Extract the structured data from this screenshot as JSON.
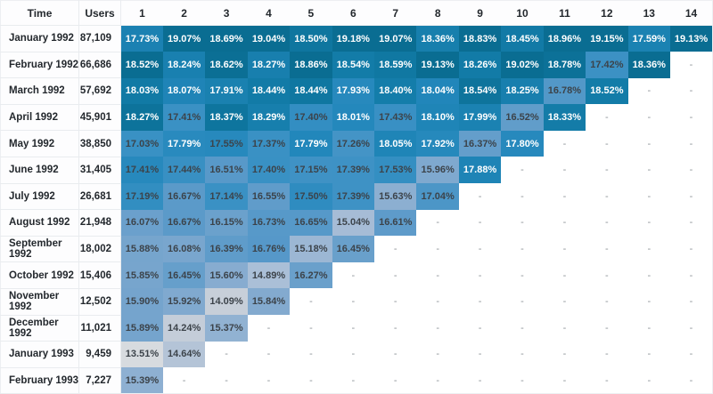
{
  "header": {
    "time": "Time",
    "users": "Users"
  },
  "chart_data": {
    "type": "heatmap",
    "columns": [
      "1",
      "2",
      "3",
      "4",
      "5",
      "6",
      "7",
      "8",
      "9",
      "10",
      "11",
      "12",
      "13",
      "14"
    ],
    "cohorts": [
      "January 1992",
      "February 1992",
      "March 1992",
      "April 1992",
      "May 1992",
      "June 1992",
      "July 1992",
      "August 1992",
      "September 1992",
      "October 1992",
      "November 1992",
      "December 1992",
      "January 1993",
      "February 1993"
    ],
    "users": [
      "87,109",
      "66,686",
      "57,692",
      "45,901",
      "38,850",
      "31,405",
      "26,681",
      "21,948",
      "18,002",
      "15,406",
      "12,502",
      "11,021",
      "9,459",
      "7,227"
    ],
    "values_percent": [
      [
        17.73,
        19.07,
        18.69,
        19.04,
        18.5,
        19.18,
        19.07,
        18.36,
        18.83,
        18.45,
        18.96,
        19.15,
        17.59,
        19.13
      ],
      [
        18.52,
        18.24,
        18.62,
        18.27,
        18.86,
        18.54,
        18.59,
        19.13,
        18.26,
        19.02,
        18.78,
        17.42,
        18.36,
        null
      ],
      [
        18.03,
        18.07,
        17.91,
        18.44,
        18.44,
        17.93,
        18.4,
        18.04,
        18.54,
        18.25,
        16.78,
        18.52,
        null,
        null
      ],
      [
        18.27,
        17.41,
        18.37,
        18.29,
        17.4,
        18.01,
        17.43,
        18.1,
        17.99,
        16.52,
        18.33,
        null,
        null,
        null
      ],
      [
        17.03,
        17.79,
        17.55,
        17.37,
        17.79,
        17.26,
        18.05,
        17.92,
        16.37,
        17.8,
        null,
        null,
        null,
        null
      ],
      [
        17.41,
        17.44,
        16.51,
        17.4,
        17.15,
        17.39,
        17.53,
        15.96,
        17.88,
        null,
        null,
        null,
        null,
        null
      ],
      [
        17.19,
        16.67,
        17.14,
        16.55,
        17.5,
        17.39,
        15.63,
        17.04,
        null,
        null,
        null,
        null,
        null,
        null
      ],
      [
        16.07,
        16.67,
        16.15,
        16.73,
        16.65,
        15.04,
        16.61,
        null,
        null,
        null,
        null,
        null,
        null,
        null
      ],
      [
        15.88,
        16.08,
        16.39,
        16.76,
        15.18,
        16.45,
        null,
        null,
        null,
        null,
        null,
        null,
        null,
        null
      ],
      [
        15.85,
        16.45,
        15.6,
        14.89,
        16.27,
        null,
        null,
        null,
        null,
        null,
        null,
        null,
        null,
        null
      ],
      [
        15.9,
        15.92,
        14.09,
        15.84,
        null,
        null,
        null,
        null,
        null,
        null,
        null,
        null,
        null,
        null
      ],
      [
        15.89,
        14.24,
        15.37,
        null,
        null,
        null,
        null,
        null,
        null,
        null,
        null,
        null,
        null,
        null
      ],
      [
        13.51,
        14.64,
        null,
        null,
        null,
        null,
        null,
        null,
        null,
        null,
        null,
        null,
        null,
        null
      ],
      [
        15.39,
        null,
        null,
        null,
        null,
        null,
        null,
        null,
        null,
        null,
        null,
        null,
        null,
        null
      ]
    ],
    "value_suffix": "%",
    "legend": "none",
    "color_mapping": "per-column: darker blue = higher retention relative to column max"
  },
  "style": {
    "scale_min_value": 13.51,
    "color_scale_stops": [
      [
        0.0,
        "#d7dbdf"
      ],
      [
        0.12,
        "#c6ced9"
      ],
      [
        0.28,
        "#a4bbd6"
      ],
      [
        0.45,
        "#7ca7ce"
      ],
      [
        0.58,
        "#5899c9"
      ],
      [
        0.7,
        "#3a91c4"
      ],
      [
        0.8,
        "#2287bb"
      ],
      [
        0.9,
        "#117aa5"
      ],
      [
        1.0,
        "#0a6d92"
      ]
    ],
    "white_text_min_value": 17.57,
    "cell_text_light": "#ffffff",
    "cell_text_dark": "#3c434a",
    "empty_cell_text": "-",
    "empty_text_color": "#8d9398",
    "border_color": "#e9ecef",
    "header_text_color": "#23282d"
  }
}
